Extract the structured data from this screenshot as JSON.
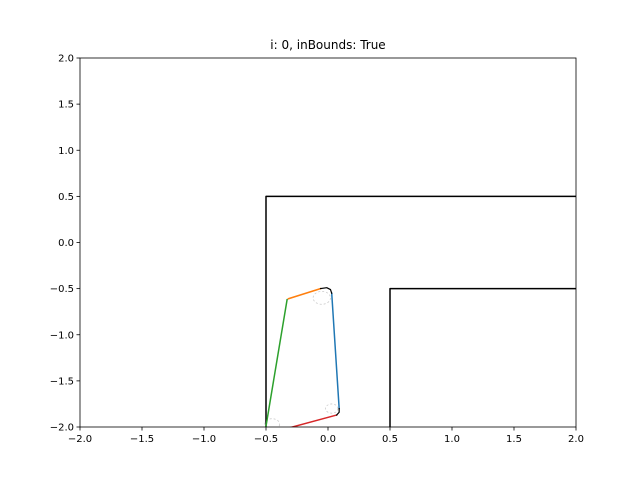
{
  "chart_data": {
    "type": "line",
    "title": "i: 0, inBounds: True",
    "xlabel": "",
    "ylabel": "",
    "xlim": [
      -2.0,
      2.0
    ],
    "ylim": [
      -2.0,
      2.0
    ],
    "xticks": [
      -2.0,
      -1.5,
      -1.0,
      -0.5,
      0.0,
      0.5,
      1.0,
      1.5,
      2.0
    ],
    "yticks": [
      -2.0,
      -1.5,
      -1.0,
      -0.5,
      0.0,
      0.5,
      1.0,
      1.5,
      2.0
    ],
    "xtick_labels": [
      "−2.0",
      "−1.5",
      "−1.0",
      "−0.5",
      "0.0",
      "0.5",
      "1.0",
      "1.5",
      "2.0"
    ],
    "ytick_labels": [
      "−2.0",
      "−1.5",
      "−1.0",
      "−0.5",
      "0.0",
      "0.5",
      "1.0",
      "1.5",
      "2.0"
    ],
    "grid": false,
    "series": [
      {
        "color": "#000000",
        "width": 1.5,
        "points": [
          [
            -0.5,
            -2.0
          ],
          [
            -0.5,
            0.5
          ],
          [
            2.0,
            0.5
          ]
        ]
      },
      {
        "color": "#000000",
        "width": 1.5,
        "points": [
          [
            0.5,
            -2.0
          ],
          [
            0.5,
            -0.5
          ],
          [
            2.0,
            -0.5
          ]
        ]
      },
      {
        "color": "#1f77b4",
        "width": 1.5,
        "points": [
          [
            0.03,
            -0.55
          ],
          [
            0.09,
            -1.8
          ]
        ]
      },
      {
        "color": "#ff7f0e",
        "width": 1.5,
        "points": [
          [
            -0.32,
            -0.61
          ],
          [
            -0.06,
            -0.5
          ]
        ]
      },
      {
        "color": "#2ca02c",
        "width": 1.5,
        "points": [
          [
            -0.5,
            -1.99
          ],
          [
            -0.33,
            -0.62
          ]
        ]
      },
      {
        "color": "#d62728",
        "width": 1.5,
        "points": [
          [
            -0.37,
            -2.03
          ],
          [
            0.07,
            -1.87
          ]
        ]
      },
      {
        "color": "#000000",
        "width": 1.2,
        "points": [
          [
            -0.06,
            -0.5
          ],
          [
            -0.01,
            -0.49
          ],
          [
            0.02,
            -0.51
          ],
          [
            0.03,
            -0.55
          ]
        ]
      },
      {
        "color": "#000000",
        "width": 1.2,
        "points": [
          [
            0.09,
            -1.8
          ],
          [
            0.09,
            -1.84
          ],
          [
            0.07,
            -1.87
          ]
        ]
      }
    ],
    "circles": [
      {
        "cx": -0.05,
        "cy": -0.6,
        "r": 0.07,
        "color": "#cccccc"
      },
      {
        "cx": 0.03,
        "cy": -1.8,
        "r": 0.05,
        "color": "#cccccc"
      },
      {
        "cx": -0.45,
        "cy": -1.97,
        "r": 0.06,
        "color": "#cccccc"
      }
    ]
  }
}
